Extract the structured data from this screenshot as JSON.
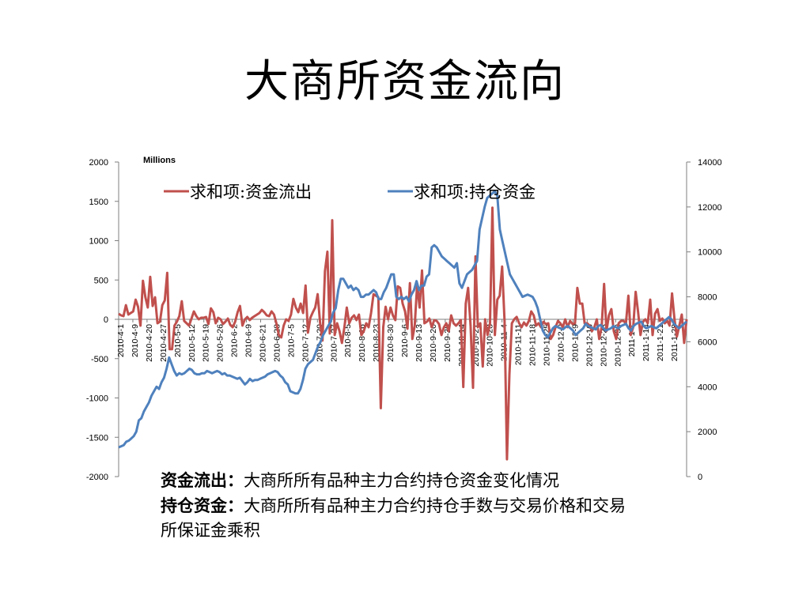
{
  "slide": {
    "title": "大商所资金流向"
  },
  "notes": [
    {
      "term": "资金流出：",
      "text": "大商所所有品种主力合约持仓资金变化情况"
    },
    {
      "term": "持仓资金：",
      "text": "大商所所有品种主力合约持仓手数与交易价格和交易所保证金乘积"
    }
  ],
  "colors": {
    "outflow": "#c0504d",
    "holding": "#4f81bd",
    "axis": "#7f7f7f"
  },
  "chart_data": {
    "type": "line",
    "units_label": "Millions",
    "legend_position": "top",
    "grid": false,
    "y_left": {
      "ylim": [
        -2000,
        2000
      ],
      "ticks": [
        2000,
        1500,
        1000,
        500,
        0,
        -500,
        -1000,
        -1500,
        -2000
      ]
    },
    "y_right": {
      "ylim": [
        0,
        14000
      ],
      "ticks": [
        14000,
        12000,
        10000,
        8000,
        6000,
        4000,
        2000,
        0
      ]
    },
    "x_tick_labels": [
      "2010-4-1",
      "2010-4-9",
      "2010-4-20",
      "2010-4-27",
      "2010-5-5",
      "2010-5-12",
      "2010-5-19",
      "2010-5-26",
      "2010-6-2",
      "2010-6-9",
      "2010-6-21",
      "2010-6-28",
      "2010-7-5",
      "2010-7-12",
      "2010-7-20",
      "2010-7-27",
      "2010-8-5",
      "2010-8-16",
      "2010-8-23",
      "2010-8-30",
      "2010-9-6",
      "2010-9-13",
      "2010-9-20",
      "2010-9-30",
      "2010-10-14",
      "2010-10-21",
      "2010-10-28",
      "2010-11-4",
      "2010-11-11",
      "2010-11-18",
      "2010-11-25",
      "2010-12-2",
      "2010-12-9",
      "2010-12-16",
      "2010-12-23",
      "2010-12-30",
      "2011-1-7",
      "2011-1-14",
      "2011-1-21",
      "2011-1-28"
    ],
    "series": [
      {
        "name": "求和项:资金流出",
        "axis": "left",
        "values": [
          70,
          50,
          40,
          180,
          60,
          80,
          100,
          250,
          160,
          -80,
          490,
          280,
          150,
          540,
          170,
          280,
          -50,
          -30,
          180,
          240,
          590,
          -380,
          -380,
          -80,
          -30,
          40,
          230,
          -20,
          -50,
          -80,
          10,
          100,
          40,
          0,
          20,
          20,
          30,
          -60,
          140,
          90,
          -50,
          20,
          0,
          -60,
          -30,
          10,
          -70,
          -100,
          -30,
          90,
          170,
          -80,
          0,
          30,
          -10,
          20,
          40,
          60,
          80,
          120,
          90,
          50,
          40,
          100,
          60,
          -50,
          -200,
          -230,
          -80,
          0,
          -20,
          60,
          260,
          150,
          90,
          200,
          80,
          430,
          -170,
          20,
          90,
          150,
          320,
          -50,
          -270,
          610,
          860,
          -180,
          1260,
          -200,
          -50,
          -150,
          -300,
          -100,
          150,
          -50,
          20,
          50,
          -10,
          60,
          -200,
          -150,
          -50,
          -100,
          80,
          320,
          300,
          280,
          -1130,
          -100,
          160,
          0,
          150,
          50,
          -10,
          420,
          400,
          200,
          100,
          -120,
          460,
          -250,
          -80,
          450,
          150,
          620,
          -50,
          -30,
          10,
          -100,
          -10,
          -20,
          -60,
          -200,
          -100,
          -50,
          -150,
          50,
          -50,
          -80,
          -50,
          -10,
          -860,
          200,
          400,
          -80,
          -870,
          800,
          -100,
          -50,
          -600,
          0,
          -200,
          -50,
          1420,
          -200,
          250,
          300,
          670,
          -30,
          -1780,
          -700,
          -50,
          0,
          30,
          -50,
          -100,
          -40,
          -80,
          -20,
          100,
          50,
          -80,
          -50,
          -100,
          -30,
          -60,
          -50,
          -250,
          -200,
          -100,
          -20,
          -50,
          -100,
          0,
          -100,
          -20,
          -60,
          -50,
          400,
          200,
          200,
          -50,
          -50,
          -80,
          -150,
          -100,
          0,
          -250,
          -100,
          450,
          -150,
          50,
          130,
          -150,
          -250,
          -50,
          -20,
          -20,
          -50,
          300,
          -200,
          -100,
          350,
          100,
          -200,
          -30,
          0,
          -50,
          250,
          -200,
          70,
          130,
          -20,
          10,
          -50,
          -20,
          -80,
          330,
          0,
          -220,
          -80,
          60,
          -300,
          0
        ]
      },
      {
        "name": "求和项:持仓资金",
        "axis": "right",
        "values": [
          1300,
          1350,
          1400,
          1550,
          1600,
          1700,
          1800,
          2000,
          2500,
          2600,
          2900,
          3100,
          3300,
          3600,
          3800,
          4000,
          3900,
          4200,
          4400,
          4800,
          5300,
          5000,
          4700,
          4500,
          4600,
          4550,
          4600,
          4700,
          4800,
          4750,
          4600,
          4550,
          4550,
          4600,
          4600,
          4700,
          4650,
          4600,
          4650,
          4700,
          4650,
          4550,
          4600,
          4500,
          4500,
          4450,
          4400,
          4350,
          4400,
          4250,
          4100,
          4200,
          4350,
          4250,
          4300,
          4300,
          4350,
          4400,
          4450,
          4550,
          4600,
          4650,
          4700,
          4650,
          4500,
          4400,
          4200,
          4100,
          3800,
          3750,
          3700,
          3700,
          3900,
          4300,
          4800,
          5000,
          5100,
          5200,
          5500,
          5800,
          6000,
          6300,
          6500,
          6700,
          6900,
          7300,
          7500,
          8300,
          8800,
          8800,
          8600,
          8400,
          8500,
          8300,
          8400,
          8300,
          8000,
          8000,
          8100,
          8100,
          8200,
          8300,
          8200,
          7900,
          7900,
          8200,
          8400,
          8700,
          9000,
          9000,
          8000,
          7900,
          8000,
          7900,
          8000,
          7800,
          8100,
          8300,
          8700,
          8300,
          8500,
          8500,
          8900,
          9000,
          10200,
          10300,
          10200,
          10000,
          9800,
          9700,
          9600,
          9500,
          9400,
          9300,
          9500,
          8600,
          8400,
          8700,
          9000,
          9100,
          9200,
          9400,
          9600,
          11000,
          11500,
          12000,
          12400,
          12500,
          12600,
          12700,
          12500,
          11000,
          10500,
          10000,
          9500,
          9000,
          8800,
          8600,
          8400,
          8200,
          8000,
          8050,
          8100,
          8050,
          8000,
          7800,
          7500,
          7000,
          6500,
          6300,
          6200,
          6400,
          6600,
          6700,
          6650,
          6600,
          6550,
          6650,
          6700,
          6600,
          6500,
          6300,
          6400,
          6500,
          6600,
          6800,
          6700,
          6650,
          6600,
          6550,
          6700,
          6750,
          6600,
          6500,
          6550,
          6600,
          6700,
          6650,
          6600,
          6700,
          6750,
          6800,
          6600,
          6500,
          6700,
          6800,
          6850,
          6900,
          6700,
          6600,
          6650,
          6700,
          6650,
          6600,
          6700,
          6800,
          6900,
          7000,
          7100,
          7000,
          6800,
          6700,
          6600,
          6700,
          6800,
          6900
        ]
      }
    ]
  }
}
